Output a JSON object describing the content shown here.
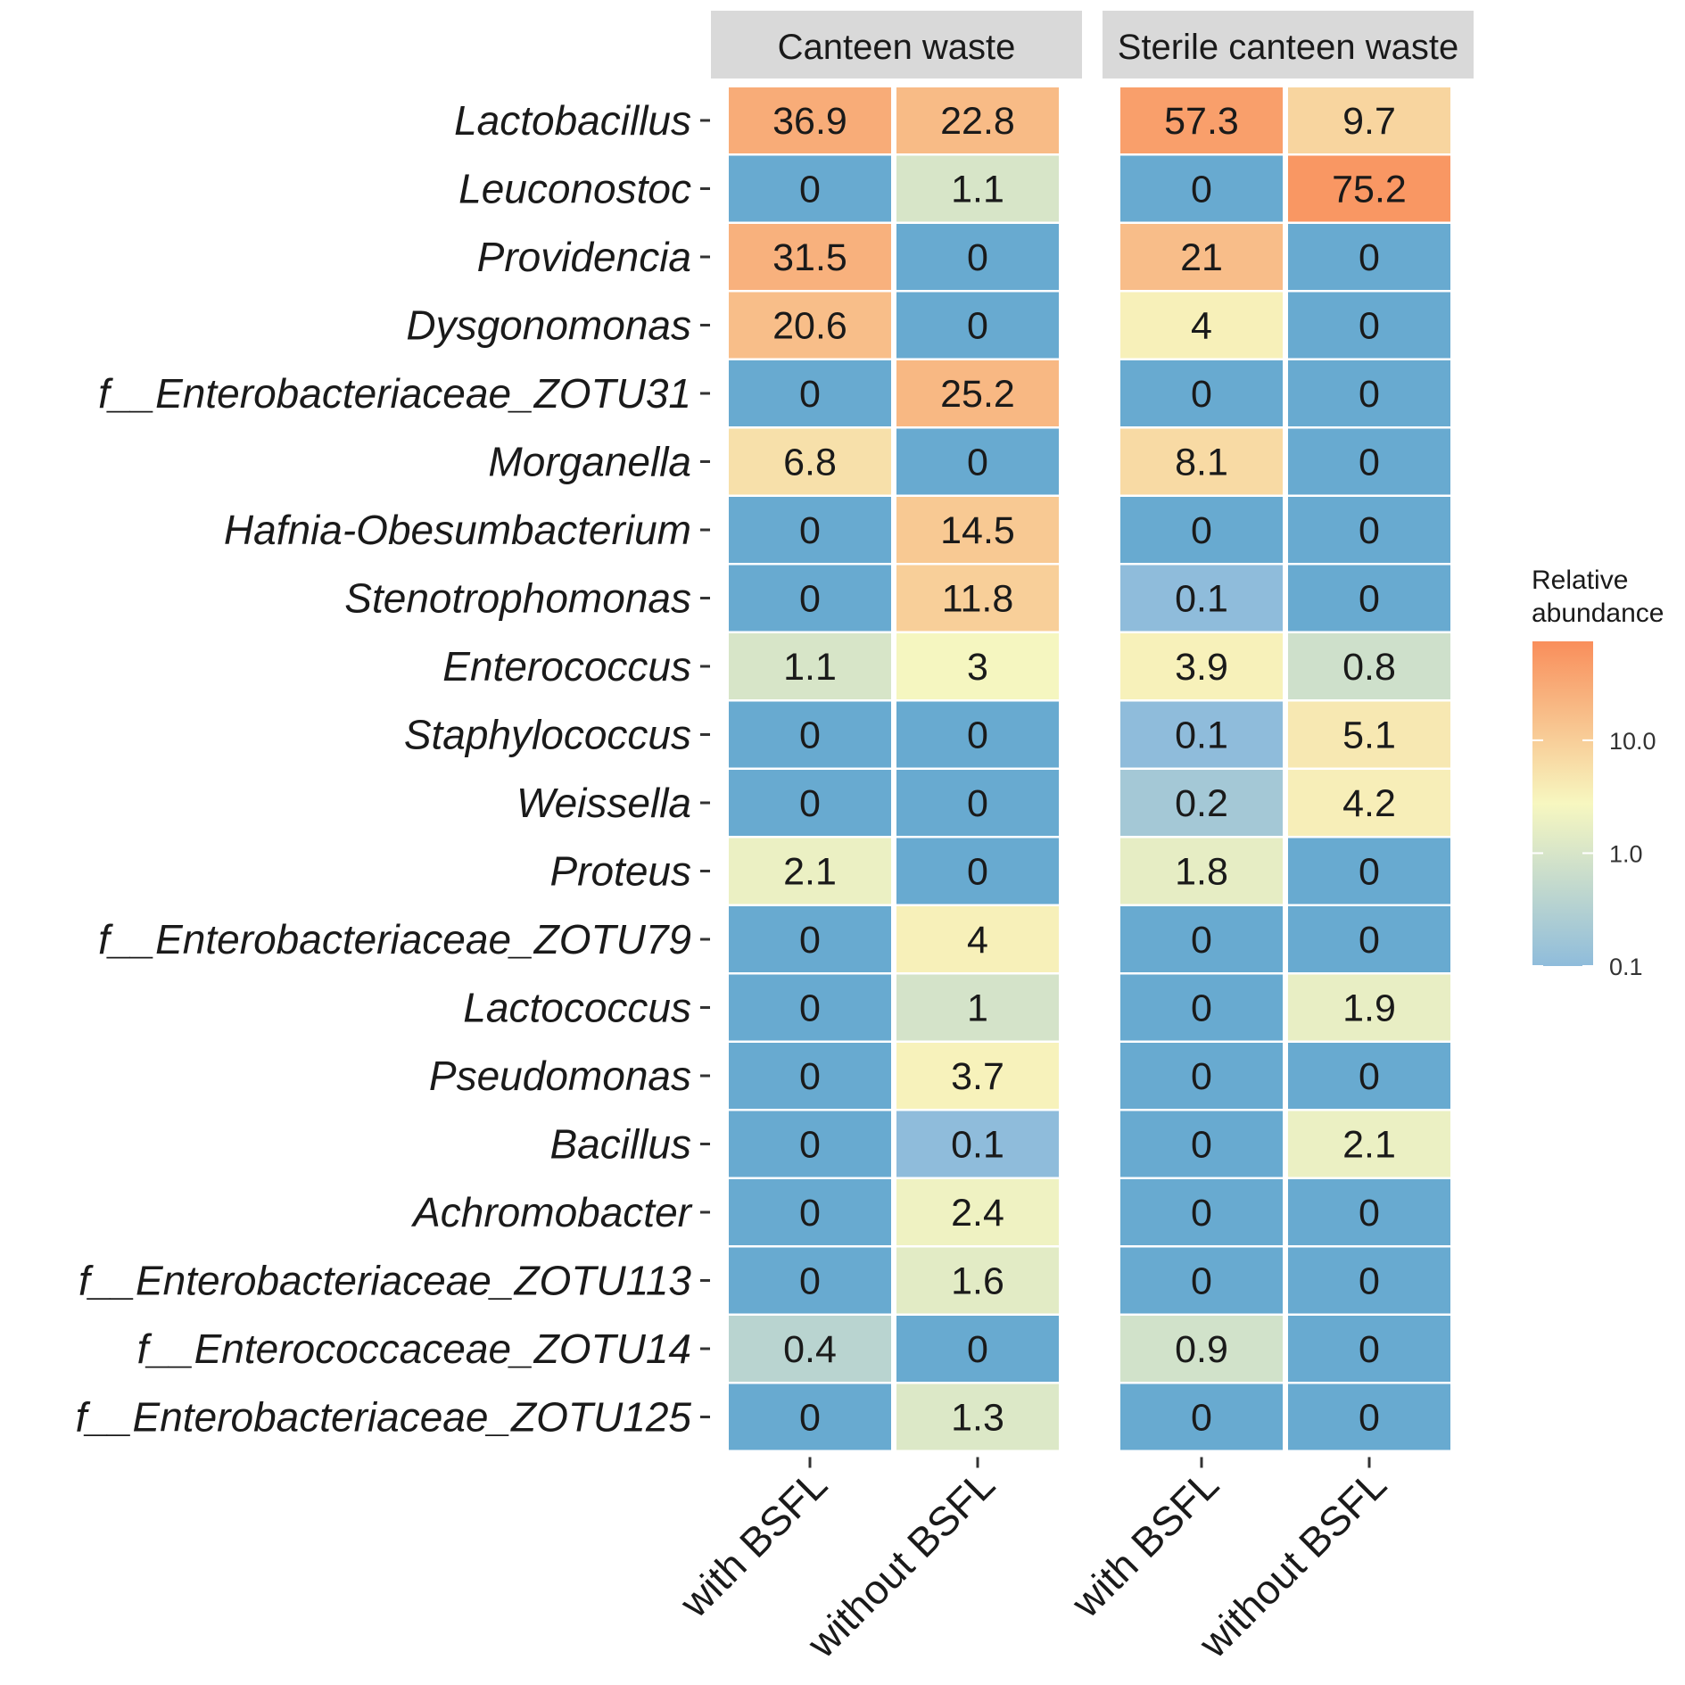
{
  "chart_data": {
    "type": "heatmap",
    "facets": [
      "Canteen waste",
      "Sterile canteen waste"
    ],
    "columns": [
      "with BSFL",
      "without BSFL"
    ],
    "rows": [
      "Lactobacillus",
      "Leuconostoc",
      "Providencia",
      "Dysgonomonas",
      "f__Enterobacteriaceae_ZOTU31",
      "Morganella",
      "Hafnia-Obesumbacterium",
      "Stenotrophomonas",
      "Enterococcus",
      "Staphylococcus",
      "Weissella",
      "Proteus",
      "f__Enterobacteriaceae_ZOTU79",
      "Lactococcus",
      "Pseudomonas",
      "Bacillus",
      "Achromobacter",
      "f__Enterobacteriaceae_ZOTU113",
      "f__Enterococcaceae_ZOTU14",
      "f__Enterobacteriaceae_ZOTU125"
    ],
    "values": [
      [
        36.9,
        22.8,
        57.3,
        9.7
      ],
      [
        0,
        1.1,
        0,
        75.2
      ],
      [
        31.5,
        0,
        21,
        0
      ],
      [
        20.6,
        0,
        4,
        0
      ],
      [
        0,
        25.2,
        0,
        0
      ],
      [
        6.8,
        0,
        8.1,
        0
      ],
      [
        0,
        14.5,
        0,
        0
      ],
      [
        0,
        11.8,
        0.1,
        0
      ],
      [
        1.1,
        3,
        3.9,
        0.8
      ],
      [
        0,
        0,
        0.1,
        5.1
      ],
      [
        0,
        0,
        0.2,
        4.2
      ],
      [
        2.1,
        0,
        1.8,
        0
      ],
      [
        0,
        4,
        0,
        0
      ],
      [
        0,
        1,
        0,
        1.9
      ],
      [
        0,
        3.7,
        0,
        0
      ],
      [
        0,
        0.1,
        0,
        2.1
      ],
      [
        0,
        2.4,
        0,
        0
      ],
      [
        0,
        1.6,
        0,
        0
      ],
      [
        0.4,
        0,
        0.9,
        0
      ],
      [
        0,
        1.3,
        0,
        0
      ]
    ],
    "value_labels": [
      [
        "36.9",
        "22.8",
        "57.3",
        "9.7"
      ],
      [
        "0",
        "1.1",
        "0",
        "75.2"
      ],
      [
        "31.5",
        "0",
        "21",
        "0"
      ],
      [
        "20.6",
        "0",
        "4",
        "0"
      ],
      [
        "0",
        "25.2",
        "0",
        "0"
      ],
      [
        "6.8",
        "0",
        "8.1",
        "0"
      ],
      [
        "0",
        "14.5",
        "0",
        "0"
      ],
      [
        "0",
        "11.8",
        "0.1",
        "0"
      ],
      [
        "1.1",
        "3",
        "3.9",
        "0.8"
      ],
      [
        "0",
        "0",
        "0.1",
        "5.1"
      ],
      [
        "0",
        "0",
        "0.2",
        "4.2"
      ],
      [
        "2.1",
        "0",
        "1.8",
        "0"
      ],
      [
        "0",
        "4",
        "0",
        "0"
      ],
      [
        "0",
        "1",
        "0",
        "1.9"
      ],
      [
        "0",
        "3.7",
        "0",
        "0"
      ],
      [
        "0",
        "0.1",
        "0",
        "2.1"
      ],
      [
        "0",
        "2.4",
        "0",
        "0"
      ],
      [
        "0",
        "1.6",
        "0",
        "0"
      ],
      [
        "0.4",
        "0",
        "0.9",
        "0"
      ],
      [
        "0",
        "1.3",
        "0",
        "0"
      ]
    ],
    "legend": {
      "title_lines": [
        "Relative",
        "abundance"
      ],
      "ticks": [
        "10.0",
        "1.0",
        "0.1"
      ],
      "scale": "log10",
      "placement": "right"
    },
    "colors": {
      "low": "#8fbcdb",
      "mid": "#f7f7c0",
      "high": "#f98e5b",
      "facet_strip": "#d9d9d9"
    }
  }
}
